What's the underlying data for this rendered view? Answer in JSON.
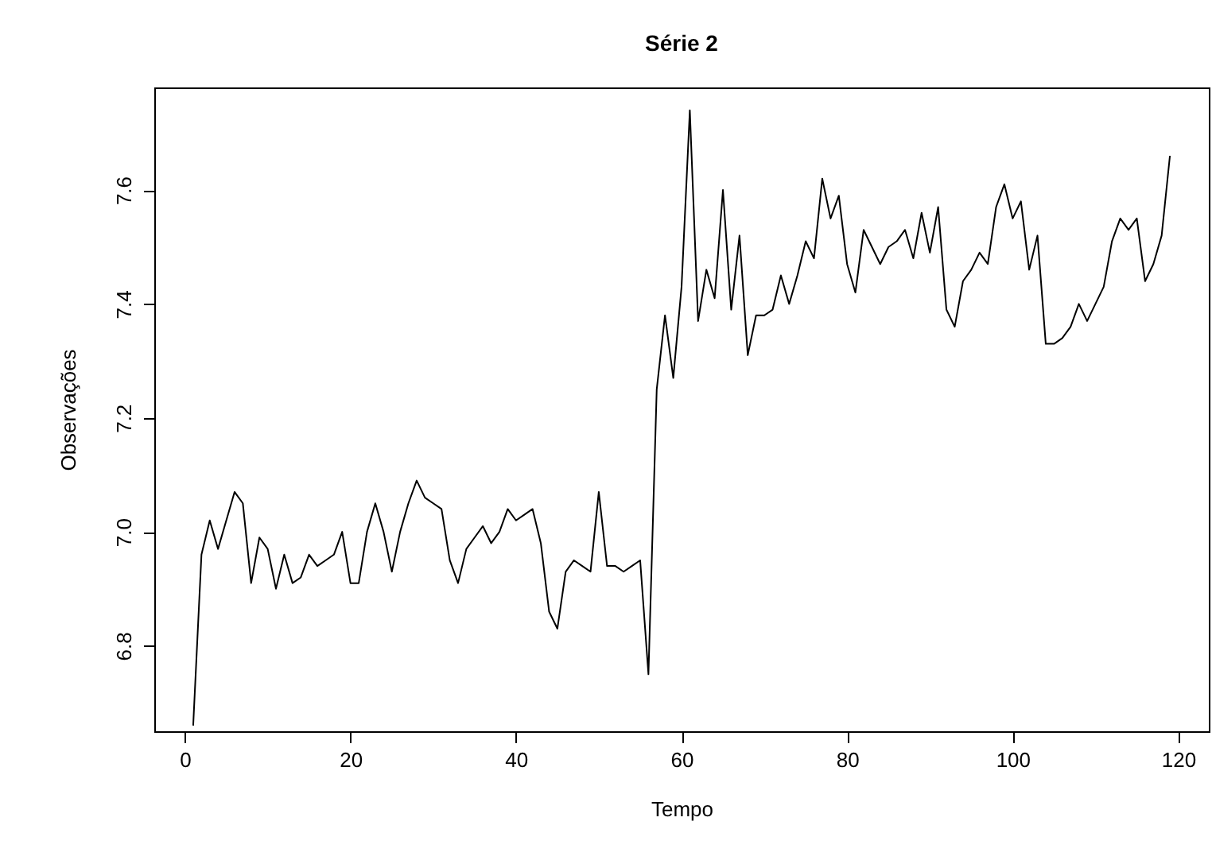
{
  "chart_data": {
    "type": "line",
    "title": "Série 2",
    "xlabel": "Tempo",
    "ylabel": "Observações",
    "x": [
      1,
      2,
      3,
      4,
      5,
      6,
      7,
      8,
      9,
      10,
      11,
      12,
      13,
      14,
      15,
      16,
      17,
      18,
      19,
      20,
      21,
      22,
      23,
      24,
      25,
      26,
      27,
      28,
      29,
      30,
      31,
      32,
      33,
      34,
      35,
      36,
      37,
      38,
      39,
      40,
      41,
      42,
      43,
      44,
      45,
      46,
      47,
      48,
      49,
      50,
      51,
      52,
      53,
      54,
      55,
      56,
      57,
      58,
      59,
      60,
      61,
      62,
      63,
      64,
      65,
      66,
      67,
      68,
      69,
      70,
      71,
      72,
      73,
      74,
      75,
      76,
      77,
      78,
      79,
      80,
      81,
      82,
      83,
      84,
      85,
      86,
      87,
      88,
      89,
      90,
      91,
      92,
      93,
      94,
      95,
      96,
      97,
      98,
      99,
      100,
      101,
      102,
      103,
      104,
      105,
      106,
      107,
      108,
      109,
      110,
      111,
      112,
      113,
      114,
      115,
      116,
      117,
      118,
      119
    ],
    "series": [
      {
        "color": "#000000",
        "values": [
          6.66,
          6.96,
          7.02,
          6.97,
          7.02,
          7.07,
          7.05,
          6.91,
          6.99,
          6.97,
          6.9,
          6.96,
          6.91,
          6.92,
          6.96,
          6.94,
          6.95,
          6.96,
          7.0,
          6.91,
          6.91,
          7.0,
          7.05,
          7.0,
          6.93,
          7.0,
          7.05,
          7.09,
          7.06,
          7.05,
          7.04,
          6.95,
          6.91,
          6.97,
          6.99,
          7.01,
          6.98,
          7.0,
          7.04,
          7.02,
          7.03,
          7.04,
          6.98,
          6.86,
          6.83,
          6.93,
          6.95,
          6.94,
          6.93,
          7.07,
          6.94,
          6.94,
          6.93,
          6.94,
          6.95,
          6.75,
          7.25,
          7.38,
          7.27,
          7.43,
          7.74,
          7.37,
          7.46,
          7.41,
          7.6,
          7.39,
          7.52,
          7.31,
          7.38,
          7.38,
          7.39,
          7.45,
          7.4,
          7.45,
          7.51,
          7.48,
          7.62,
          7.55,
          7.59,
          7.47,
          7.42,
          7.53,
          7.5,
          7.47,
          7.5,
          7.51,
          7.53,
          7.48,
          7.56,
          7.49,
          7.57,
          7.39,
          7.36,
          7.44,
          7.46,
          7.49,
          7.47,
          7.57,
          7.61,
          7.55,
          7.58,
          7.46,
          7.52,
          7.33,
          7.33,
          7.34,
          7.36,
          7.4,
          7.37,
          7.4,
          7.43,
          7.51,
          7.55,
          7.53,
          7.55,
          7.44,
          7.47,
          7.52,
          7.66
        ]
      }
    ],
    "xlim": [
      -3.7,
      123.7
    ],
    "xticks": [
      0,
      20,
      40,
      60,
      80,
      100,
      120
    ],
    "ylim": [
      6.65,
      7.78
    ],
    "yticks": [
      {
        "value": 6.8,
        "label": "6.8"
      },
      {
        "value": 7.0,
        "label": "7.0"
      },
      {
        "value": 7.2,
        "label": "7.2"
      },
      {
        "value": 7.4,
        "label": "7.4"
      },
      {
        "value": 7.6,
        "label": "7.6"
      }
    ],
    "grid": false
  }
}
